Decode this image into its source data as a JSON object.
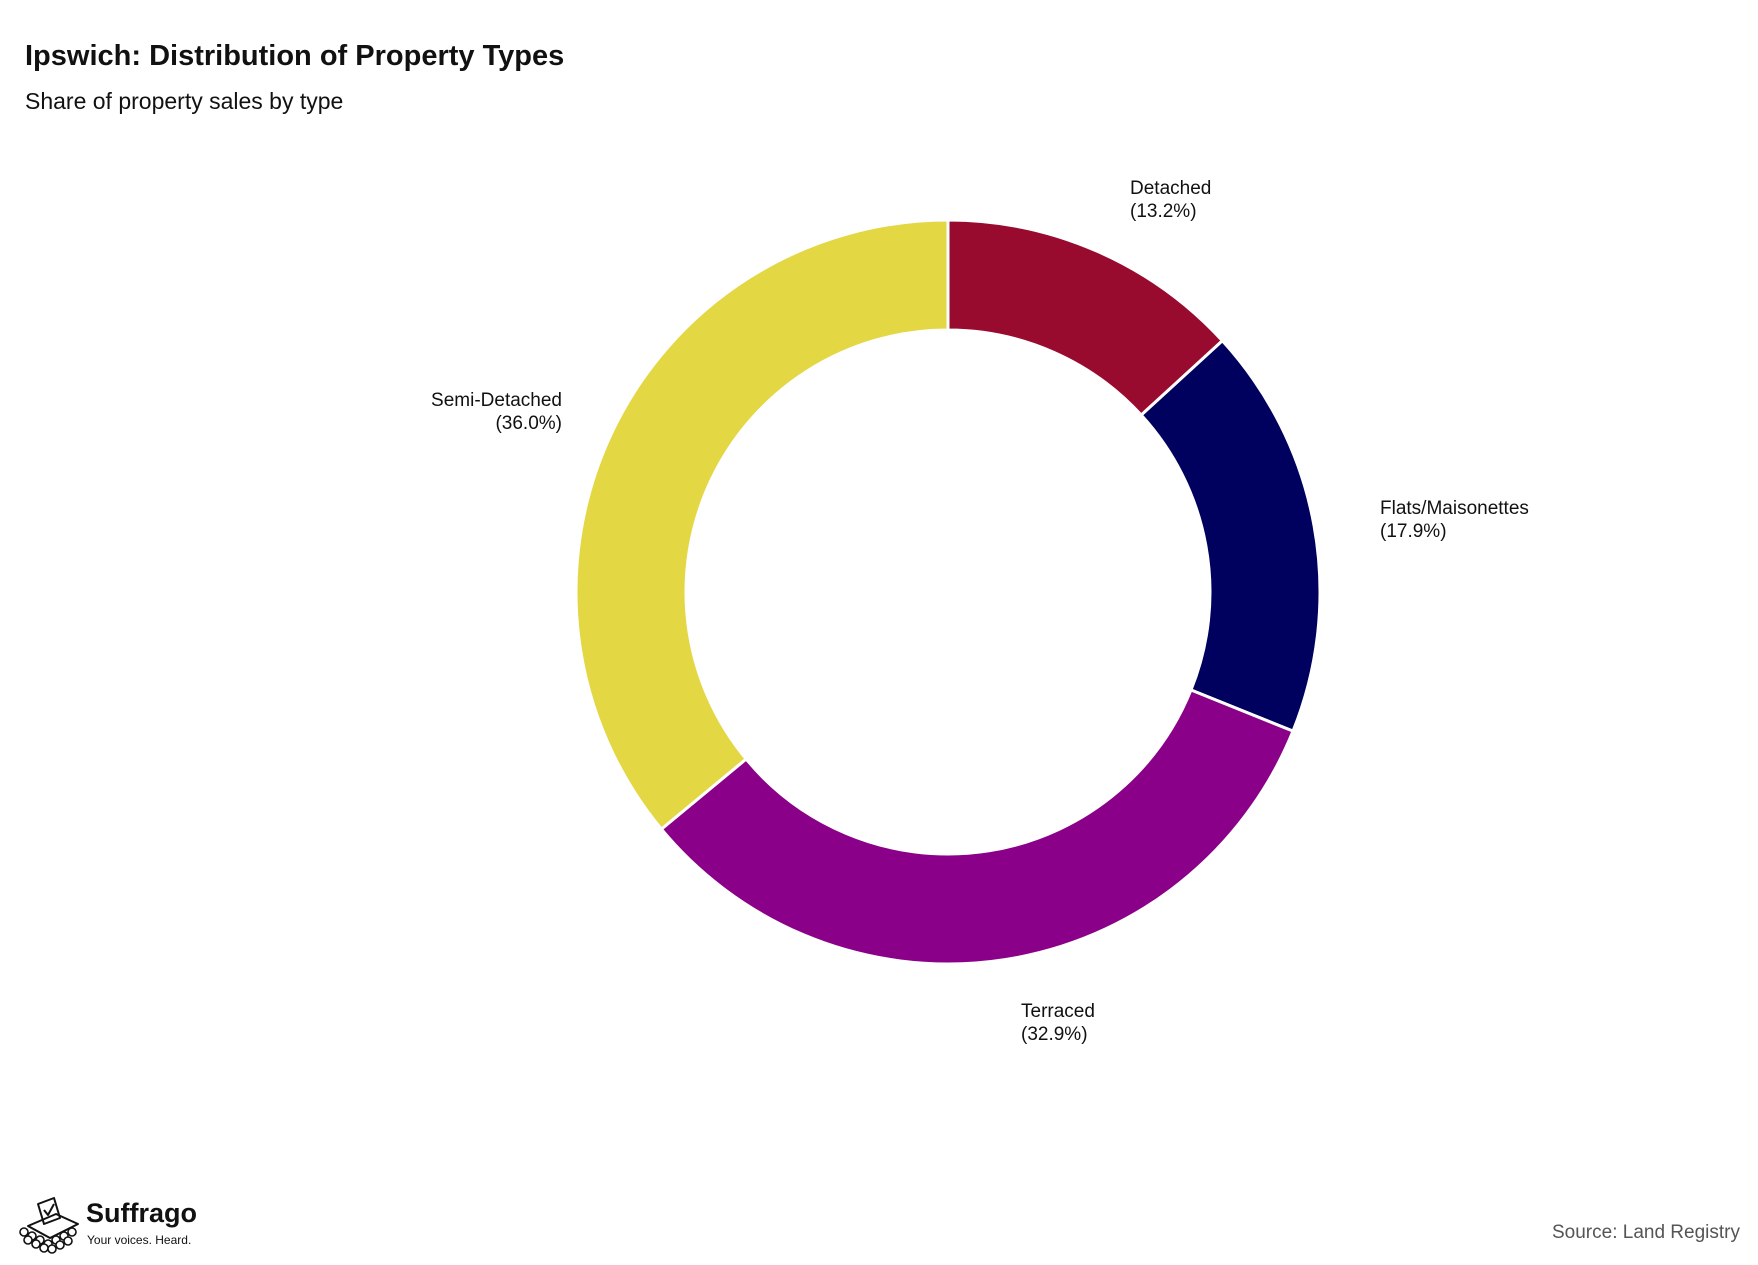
{
  "chart_data": {
    "type": "pie",
    "title": "Ipswich: Distribution of Property Types",
    "subtitle": "Share of property sales by type",
    "donut": true,
    "start_angle": "12 o'clock",
    "direction": "clockwise",
    "categories": [
      "Detached",
      "Flats/Maisonettes",
      "Terraced",
      "Semi-Detached"
    ],
    "values": [
      13.2,
      17.9,
      32.9,
      36.0
    ],
    "value_labels": [
      "(13.2%)",
      "(17.9%)",
      "(32.9%)",
      "(36.0%)"
    ],
    "colors": [
      "#990a2f",
      "#00005f",
      "#8a0088",
      "#e3d743"
    ],
    "unit": "%",
    "legend": "none"
  },
  "footer": {
    "source": "Source: Land Registry",
    "brand_name": "Suffrago",
    "brand_tagline": "Your voices. Heard."
  }
}
